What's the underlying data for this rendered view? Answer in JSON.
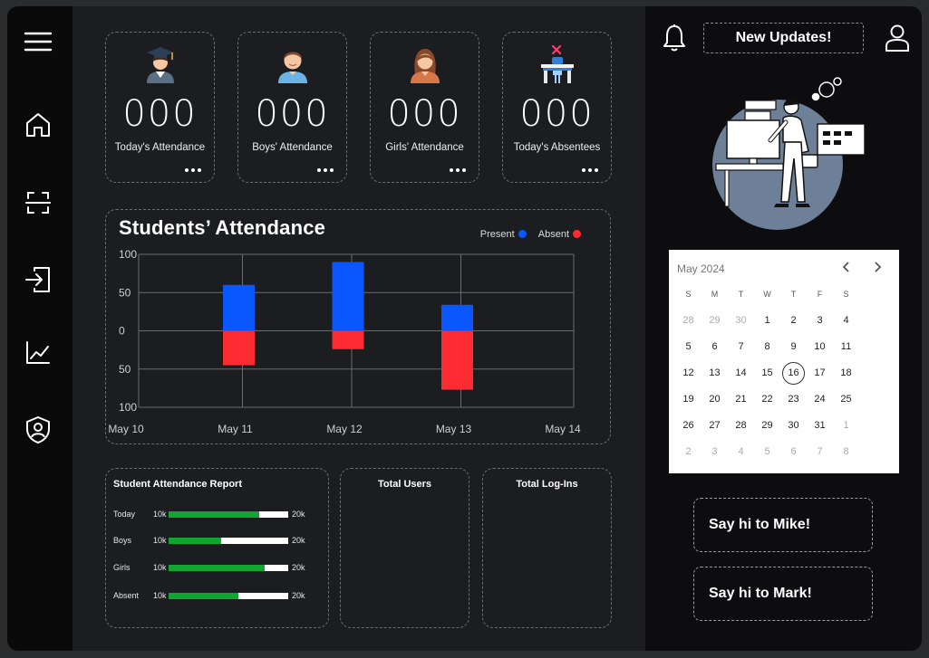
{
  "nav": {
    "items": [
      {
        "icon": "menu-icon"
      },
      {
        "icon": "home-icon"
      },
      {
        "icon": "scan-icon"
      },
      {
        "icon": "login-icon"
      },
      {
        "icon": "chart-line-icon"
      },
      {
        "icon": "user-shield-icon"
      }
    ]
  },
  "stats": [
    {
      "value": "000",
      "label": "Today's Attendance",
      "icon": "graduate-icon"
    },
    {
      "value": "000",
      "label": "Boys' Attendance",
      "icon": "boy-icon"
    },
    {
      "value": "000",
      "label": "Girls' Attendance",
      "icon": "girl-icon"
    },
    {
      "value": "000",
      "label": "Today's Absentees",
      "icon": "empty-desk-icon"
    }
  ],
  "chart_data": {
    "type": "bar",
    "title": "Students’ Attendance",
    "categories": [
      "May 10",
      "May 11",
      "May 12",
      "May 13",
      "May 14"
    ],
    "series": [
      {
        "name": "Present",
        "color": "#0a56ff",
        "values": [
          null,
          60,
          90,
          34,
          null
        ]
      },
      {
        "name": "Absent",
        "color": "#ff2b33",
        "values": [
          null,
          45,
          24,
          77,
          null
        ]
      }
    ],
    "ylim": [
      -100,
      100
    ],
    "yticks": [
      "100",
      "50",
      "0",
      "50",
      "100"
    ],
    "grid": true,
    "legend_position": "top-right",
    "xlabel": "",
    "ylabel": ""
  },
  "report": {
    "title": "Student Attendance Report",
    "rows": [
      {
        "label": "Today",
        "min": "10k",
        "max": "20k",
        "fill": 0.76
      },
      {
        "label": "Boys",
        "min": "10k",
        "max": "20k",
        "fill": 0.44
      },
      {
        "label": "Girls",
        "min": "10k",
        "max": "20k",
        "fill": 0.8
      },
      {
        "label": "Absent",
        "min": "10k",
        "max": "20k",
        "fill": 0.58
      }
    ]
  },
  "panels": {
    "total_users": "Total Users",
    "total_logins": "Total Log-Ins"
  },
  "header": {
    "updates_label": "New Updates!"
  },
  "calendar": {
    "month": "May 2024",
    "weekdays": [
      "S",
      "M",
      "T",
      "W",
      "T",
      "F",
      "S"
    ],
    "selected": "16",
    "weeks": [
      [
        "28",
        "29",
        "30",
        "1",
        "2",
        "3",
        "4"
      ],
      [
        "5",
        "6",
        "7",
        "8",
        "9",
        "10",
        "11"
      ],
      [
        "12",
        "13",
        "14",
        "15",
        "16",
        "17",
        "18"
      ],
      [
        "19",
        "20",
        "21",
        "22",
        "23",
        "24",
        "25"
      ],
      [
        "26",
        "27",
        "28",
        "29",
        "30",
        "31",
        "1"
      ],
      [
        "2",
        "3",
        "4",
        "5",
        "6",
        "7",
        "8"
      ]
    ],
    "muted": [
      [
        true,
        true,
        true,
        false,
        false,
        false,
        false
      ],
      [
        false,
        false,
        false,
        false,
        false,
        false,
        false
      ],
      [
        false,
        false,
        false,
        false,
        false,
        false,
        false
      ],
      [
        false,
        false,
        false,
        false,
        false,
        false,
        false
      ],
      [
        false,
        false,
        false,
        false,
        false,
        false,
        true
      ],
      [
        true,
        true,
        true,
        true,
        true,
        true,
        true
      ]
    ]
  },
  "greetings": [
    {
      "label": "Say hi to Mike!"
    },
    {
      "label": "Say hi to Mark!"
    }
  ]
}
